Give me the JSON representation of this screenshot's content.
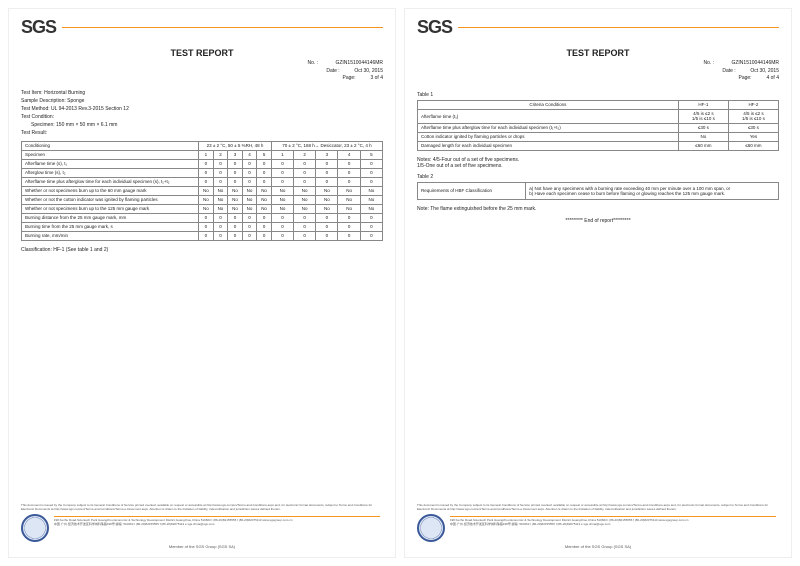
{
  "logo": "SGS",
  "title": "TEST REPORT",
  "report_no": "GZIN1510044146MR",
  "date": "Oct 30, 2015",
  "page3": {
    "page": "3 of 4",
    "test_item": "Horizontal Burning",
    "sample_desc": "Sponge",
    "test_method": "UL 94-2013 Rev.3-2015 Section 12",
    "specimen": "150 mm × 50 mm × 6.1 mm",
    "cond_a": "23 ± 2 °C, 50 ± 5 %RH, 48 h",
    "cond_b": "70 ± 2 °C, 168 h→ Desiccator, 23 ± 2 °C, 4 h",
    "rows": [
      "Afterflame time (s), t₁",
      "Afterglow time (s), t₂",
      "Afterflame time plus afterglow time for each individual specimen (s), t₁+t₂",
      "Whether or not specimens burn up to the 60 mm gauge mark",
      "Whether or not the cotton indicator was ignited by flaming particles",
      "Whether or not specimens burn up to the 125 mm gauge mark",
      "Burning distance from the 25 mm gauge mark, mm",
      "Burning time from the 25 mm gauge mark, s",
      "Burning rate, mm/min"
    ],
    "vals": [
      "0",
      "0",
      "0",
      "No",
      "No",
      "No",
      "0",
      "0",
      "0"
    ],
    "classification": "Classification: HF-1 (See table 1 and 2)"
  },
  "page4": {
    "page": "4 of 4",
    "t1": {
      "h": [
        "Criteria Conditions",
        "HF-1",
        "HF-2"
      ],
      "r": [
        [
          "Afterflame time (t₁)",
          "4/5 is ≤2 s\n1/5 is ≤10 s",
          "4/5 is ≤2 s\n1/5 is ≤10 s"
        ],
        [
          "Afterflame time plus afterglow time for each individual specimen (t₁+t₂)",
          "≤30 s",
          "≤30 s"
        ],
        [
          "Cotton indicator ignited by flaming particles or drops",
          "No",
          "Yes"
        ],
        [
          "Damaged length for each individual specimen",
          "≤60 mm",
          "≤60 mm"
        ]
      ],
      "notes": "Notes: 4/5-Four out of a set of five specimens.\n          1/5-One out of a set of five specimens."
    },
    "t2": {
      "lbl": "Requirements of HBF Classification",
      "txt": "a) Not have any specimens with a burning rate exceeding 40 mm per minute over a 100 mm span, or\nb) Have each specimen cease to burn before flaming or glowing reaches the 125 mm gauge mark."
    },
    "flame_note": "Note: The flame extinguished before the 25 mm mark.",
    "end": "********* End of report*********"
  },
  "footer": {
    "disclaimer": "This document is issued by the Company subject to its General Conditions of Service printed overleaf, available on request or accessible at http://www.sgs.com/en/Terms-and-Conditions.aspx and, for electronic format documents, subject to Terms and Conditions for Electronic Documents at http://www.sgs.com/en/Terms-and-Conditions/Terms-e-Document.aspx. Attention is drawn to the limitation of liability, indemnification and jurisdiction issues defined therein.",
    "addr": "198 Kezhu Road,Scientech Park Guangzhou Economic & Technology Development District,Guangzhou,China 510663 t (86-20)82155555 f (86-20)82075113 www.sgsgroup.com.cn",
    "addr_cn": "中国·广州·经济技术开发区科学城科珠路198号 邮编: 510663 t (86-20)82155555 f (86-20)82075113 e sgs.china@sgs.com",
    "member": "Member of the SGS Group (SGS SA)"
  }
}
